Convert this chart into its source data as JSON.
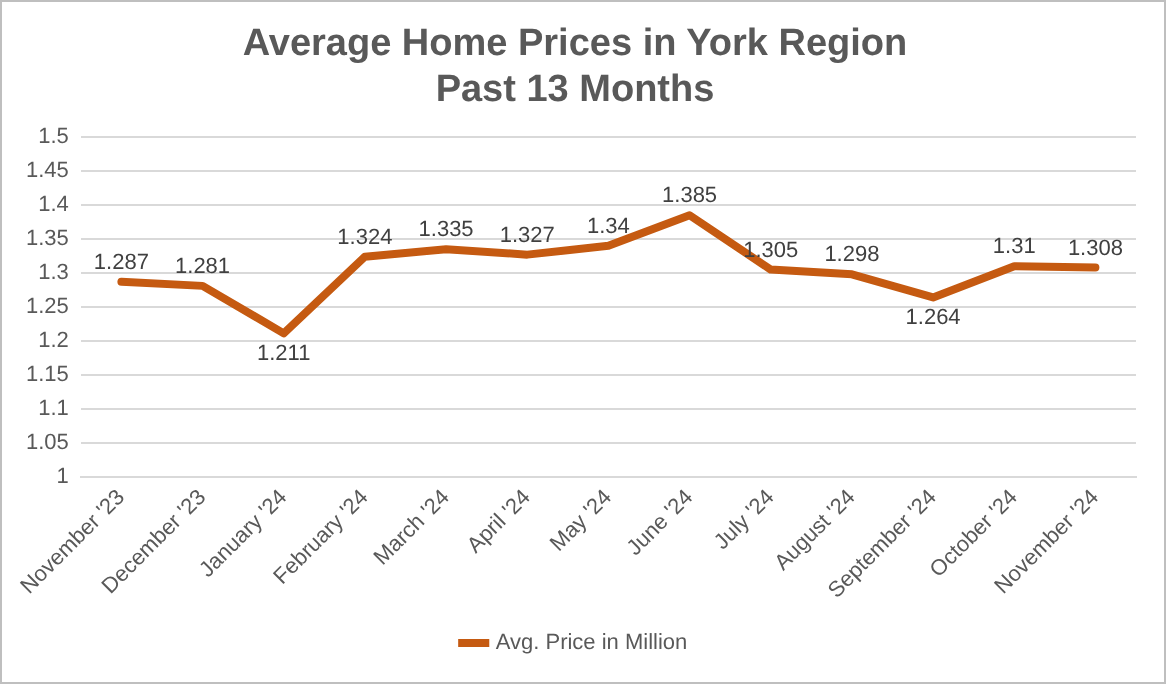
{
  "chart_data": {
    "type": "line",
    "title": "Average Home Prices in York Region\nPast 13 Months",
    "categories": [
      "November '23",
      "December '23",
      "January '24",
      "February '24",
      "March '24",
      "April '24",
      "May '24",
      "June '24",
      "July '24",
      "August '24",
      "September '24",
      "October '24",
      "November '24"
    ],
    "series": [
      {
        "name": "Avg. Price in Million",
        "color": "#c55a11",
        "values": [
          1.287,
          1.281,
          1.211,
          1.324,
          1.335,
          1.327,
          1.34,
          1.385,
          1.305,
          1.298,
          1.264,
          1.31,
          1.308
        ]
      }
    ],
    "ylim": [
      1,
      1.5
    ],
    "yticks": [
      1,
      1.05,
      1.1,
      1.15,
      1.2,
      1.25,
      1.3,
      1.35,
      1.4,
      1.45,
      1.5
    ],
    "grid": "y",
    "legend": "bottom",
    "data_labels": true,
    "marker": "none",
    "line_style": "solid"
  }
}
